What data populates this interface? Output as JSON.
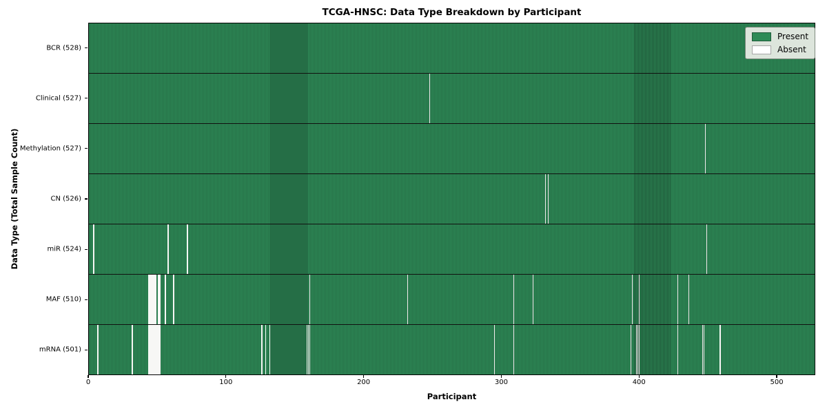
{
  "figure": {
    "title": "TCGA-HNSC: Data Type Breakdown by Participant",
    "xlabel": "Participant",
    "ylabel": "Data Type (Total Sample Count)"
  },
  "legend": {
    "present_label": "Present",
    "absent_label": "Absent"
  },
  "colors": {
    "present": "#2e8b57",
    "present_edge": "#1c5034",
    "absent": "#f7f7f5",
    "row_divider": "#10100f",
    "legend_bg": "#dde5dc"
  },
  "chart_data": {
    "type": "heatmap",
    "title": "TCGA-HNSC: Data Type Breakdown by Participant",
    "xlabel": "Participant",
    "ylabel": "Data Type (Total Sample Count)",
    "n_participants": 528,
    "xlim": [
      0,
      528
    ],
    "x_ticks": [
      0,
      100,
      200,
      300,
      400,
      500
    ],
    "grid": false,
    "legend_position": "upper right",
    "legend": [
      {
        "label": "Present",
        "color": "#2e8b57"
      },
      {
        "label": "Absent",
        "color": "#ffffff"
      }
    ],
    "rows": [
      {
        "name": "BCR",
        "label": "BCR (528)",
        "total": 528,
        "absent_participants": []
      },
      {
        "name": "Clinical",
        "label": "Clinical (527)",
        "total": 527,
        "absent_participants": [
          247
        ]
      },
      {
        "name": "Methylation",
        "label": "Methylation (527)",
        "total": 527,
        "absent_participants": [
          447
        ]
      },
      {
        "name": "CN",
        "label": "CN (526)",
        "total": 526,
        "absent_participants": [
          331,
          333
        ]
      },
      {
        "name": "miR",
        "label": "miR (524)",
        "total": 524,
        "absent_participants": [
          3,
          57,
          71,
          448
        ]
      },
      {
        "name": "MAF",
        "label": "MAF (510)",
        "total": 510,
        "absent_participants": [
          43,
          44,
          45,
          46,
          47,
          48,
          50,
          51,
          55,
          61,
          160,
          231,
          308,
          322,
          394,
          399,
          427,
          435
        ]
      },
      {
        "name": "mRNA",
        "label": "mRNA (501)",
        "total": 501,
        "absent_participants": [
          6,
          31,
          43,
          44,
          45,
          46,
          47,
          48,
          49,
          50,
          51,
          125,
          128,
          131,
          158,
          159,
          160,
          294,
          308,
          393,
          397,
          398,
          399,
          427,
          445,
          446,
          458
        ]
      }
    ]
  }
}
